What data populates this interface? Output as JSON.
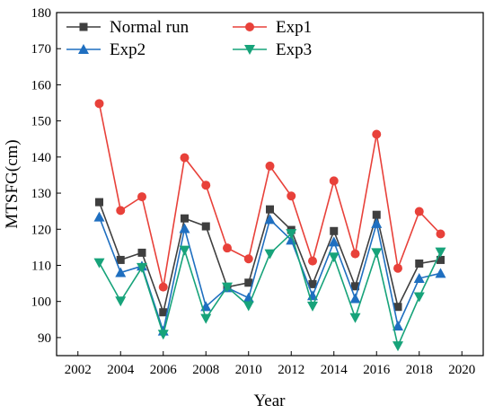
{
  "chart_data": {
    "type": "line",
    "xlabel": "Year",
    "ylabel": "MTSFG(cm)",
    "xlim": [
      2001,
      2021
    ],
    "ylim": [
      85,
      180
    ],
    "xticks": [
      2002,
      2004,
      2006,
      2008,
      2010,
      2012,
      2014,
      2016,
      2018,
      2020
    ],
    "yticks": [
      90,
      100,
      110,
      120,
      130,
      140,
      150,
      160,
      170,
      180
    ],
    "xtick_labels": [
      "2002",
      "2004",
      "2006",
      "2008",
      "2010",
      "2012",
      "2014",
      "2016",
      "2018",
      "2020"
    ],
    "ytick_labels": [
      "90",
      "100",
      "110",
      "120",
      "130",
      "140",
      "150",
      "160",
      "170",
      "180"
    ],
    "legend_position": "top-left",
    "grid": false,
    "x": [
      2003,
      2004,
      2005,
      2006,
      2007,
      2008,
      2009,
      2010,
      2011,
      2012,
      2013,
      2014,
      2015,
      2016,
      2017,
      2018,
      2019
    ],
    "series": [
      {
        "name": "Normal run",
        "color": "#3f3f3f",
        "marker": "square",
        "values": [
          127.5,
          111.5,
          113.5,
          97.0,
          123.0,
          120.8,
          104.0,
          105.2,
          125.5,
          119.8,
          104.8,
          119.5,
          104.2,
          124.0,
          98.5,
          110.5,
          111.5
        ]
      },
      {
        "name": "Exp1",
        "color": "#e8413a",
        "marker": "circle",
        "values": [
          154.8,
          125.2,
          129.0,
          104.0,
          139.8,
          132.2,
          114.8,
          111.8,
          137.5,
          129.2,
          111.2,
          133.4,
          113.2,
          146.3,
          109.2,
          124.9,
          118.7
        ]
      },
      {
        "name": "Exp2",
        "color": "#1f6fc0",
        "marker": "triangle-up",
        "values": [
          123.4,
          108.0,
          109.8,
          91.8,
          120.2,
          98.6,
          103.8,
          101.0,
          122.7,
          117.0,
          101.6,
          116.5,
          100.8,
          121.6,
          93.2,
          106.4,
          107.8
        ]
      },
      {
        "name": "Exp3",
        "color": "#17a37a",
        "marker": "triangle-down",
        "values": [
          110.7,
          100.1,
          109.4,
          90.9,
          114.2,
          95.3,
          104.0,
          98.8,
          113.2,
          118.8,
          98.7,
          112.3,
          95.5,
          113.5,
          87.7,
          101.3,
          113.7
        ]
      }
    ]
  }
}
